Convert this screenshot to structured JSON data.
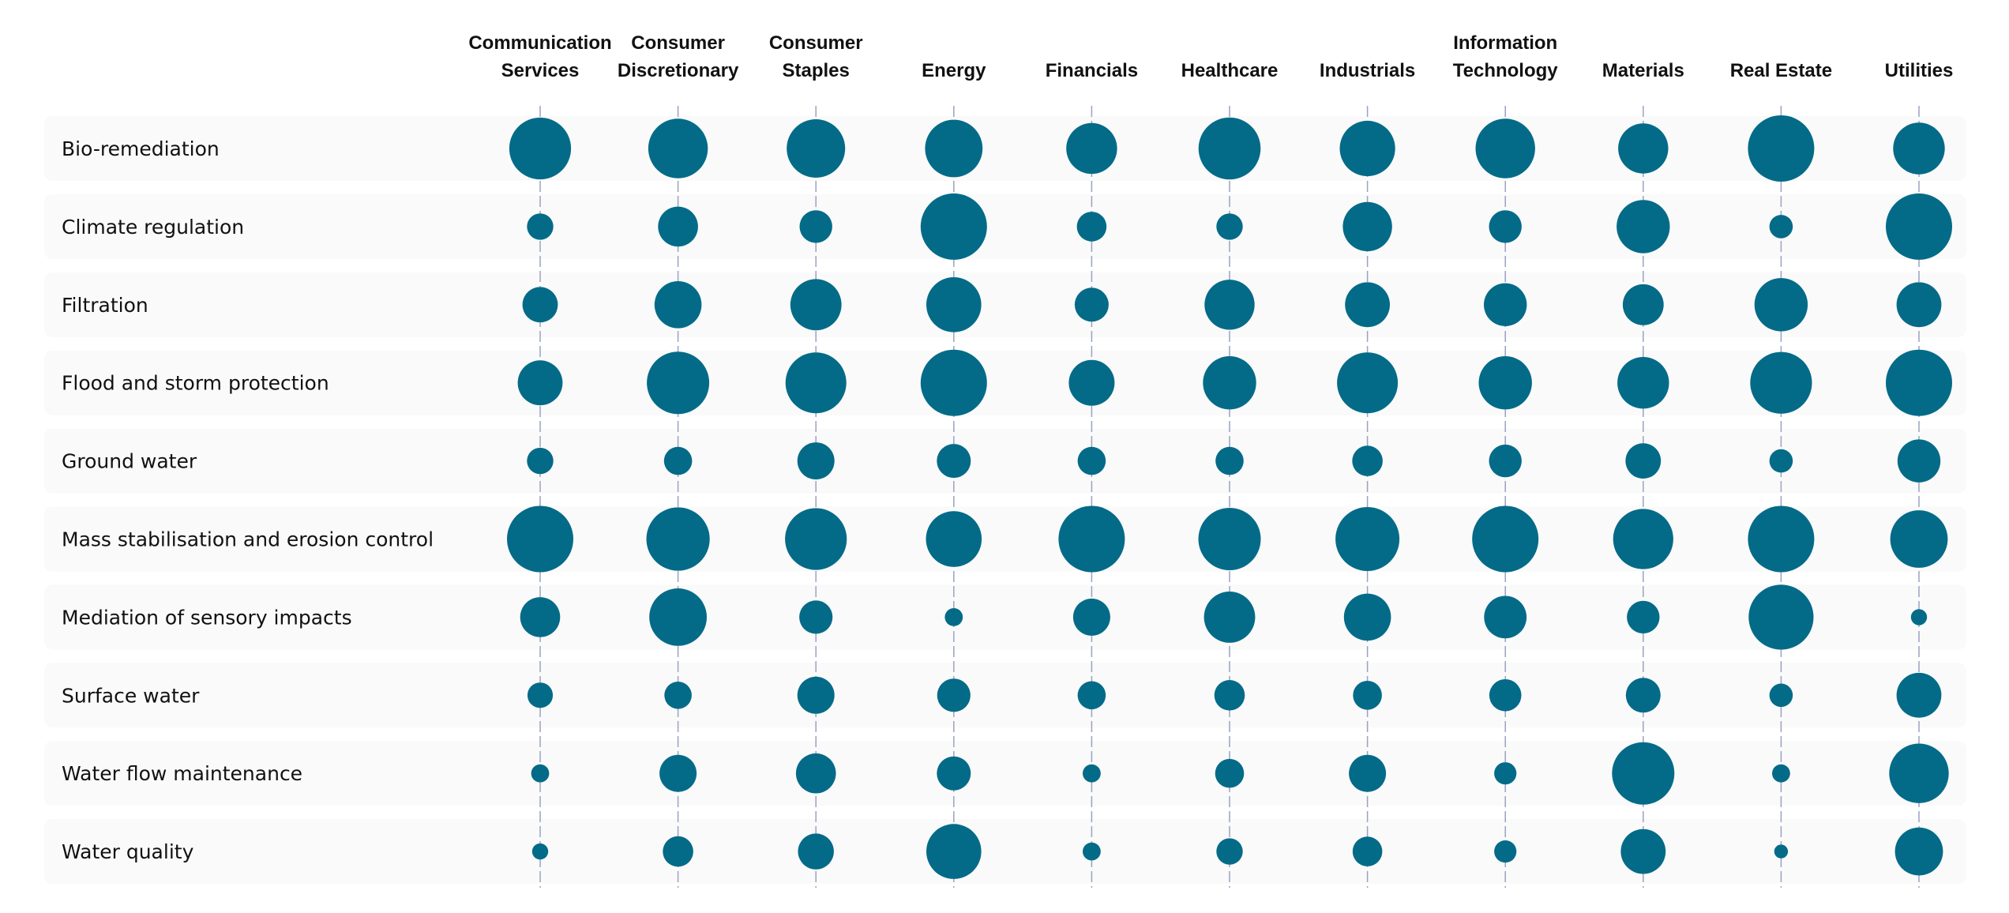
{
  "chart_data": {
    "type": "bubble-matrix",
    "title": "",
    "columns": [
      [
        "Communication",
        "Services"
      ],
      [
        "Consumer",
        "Discretionary"
      ],
      [
        "Consumer",
        "Staples"
      ],
      [
        "Energy"
      ],
      [
        "Financials"
      ],
      [
        "Healthcare"
      ],
      [
        "Industrials"
      ],
      [
        "Information",
        "Technology"
      ],
      [
        "Materials"
      ],
      [
        "Real Estate"
      ],
      [
        "Utilities"
      ]
    ],
    "rows": [
      "Bio-remediation",
      "Climate regulation",
      "Filtration",
      "Flood and storm protection",
      "Ground water",
      "Mass stabilisation and erosion control",
      "Mediation of sensory impacts",
      "Surface water",
      "Water flow maintenance",
      "Water quality"
    ],
    "values": [
      [
        0.85,
        0.78,
        0.75,
        0.72,
        0.54,
        0.86,
        0.66,
        0.78,
        0.52,
        1.0,
        0.56
      ],
      [
        0.1,
        0.3,
        0.18,
        1.0,
        0.14,
        0.1,
        0.5,
        0.18,
        0.6,
        0.07,
        1.0
      ],
      [
        0.22,
        0.45,
        0.55,
        0.65,
        0.2,
        0.52,
        0.4,
        0.36,
        0.32,
        0.6,
        0.4
      ],
      [
        0.4,
        0.87,
        0.82,
        1.0,
        0.42,
        0.6,
        0.82,
        0.6,
        0.56,
        0.85,
        1.0
      ],
      [
        0.1,
        0.12,
        0.25,
        0.2,
        0.12,
        0.12,
        0.15,
        0.18,
        0.22,
        0.07,
        0.36
      ],
      [
        1.0,
        0.9,
        0.85,
        0.67,
        1.0,
        0.87,
        0.92,
        1.0,
        0.8,
        1.0,
        0.72
      ],
      [
        0.3,
        0.72,
        0.19,
        0.03,
        0.25,
        0.55,
        0.45,
        0.35,
        0.18,
        0.95,
        0.02
      ],
      [
        0.09,
        0.11,
        0.25,
        0.19,
        0.12,
        0.15,
        0.13,
        0.17,
        0.21,
        0.07,
        0.4
      ],
      [
        0.03,
        0.25,
        0.3,
        0.2,
        0.03,
        0.13,
        0.25,
        0.06,
        0.87,
        0.03,
        0.78
      ],
      [
        0.02,
        0.15,
        0.23,
        0.65,
        0.03,
        0.1,
        0.14,
        0.06,
        0.4,
        0.01,
        0.47
      ]
    ],
    "colors": {
      "bubble": "#036b88",
      "row_band": "#fafafa",
      "gridline": "#9aa2c4",
      "text": "#111111"
    }
  }
}
